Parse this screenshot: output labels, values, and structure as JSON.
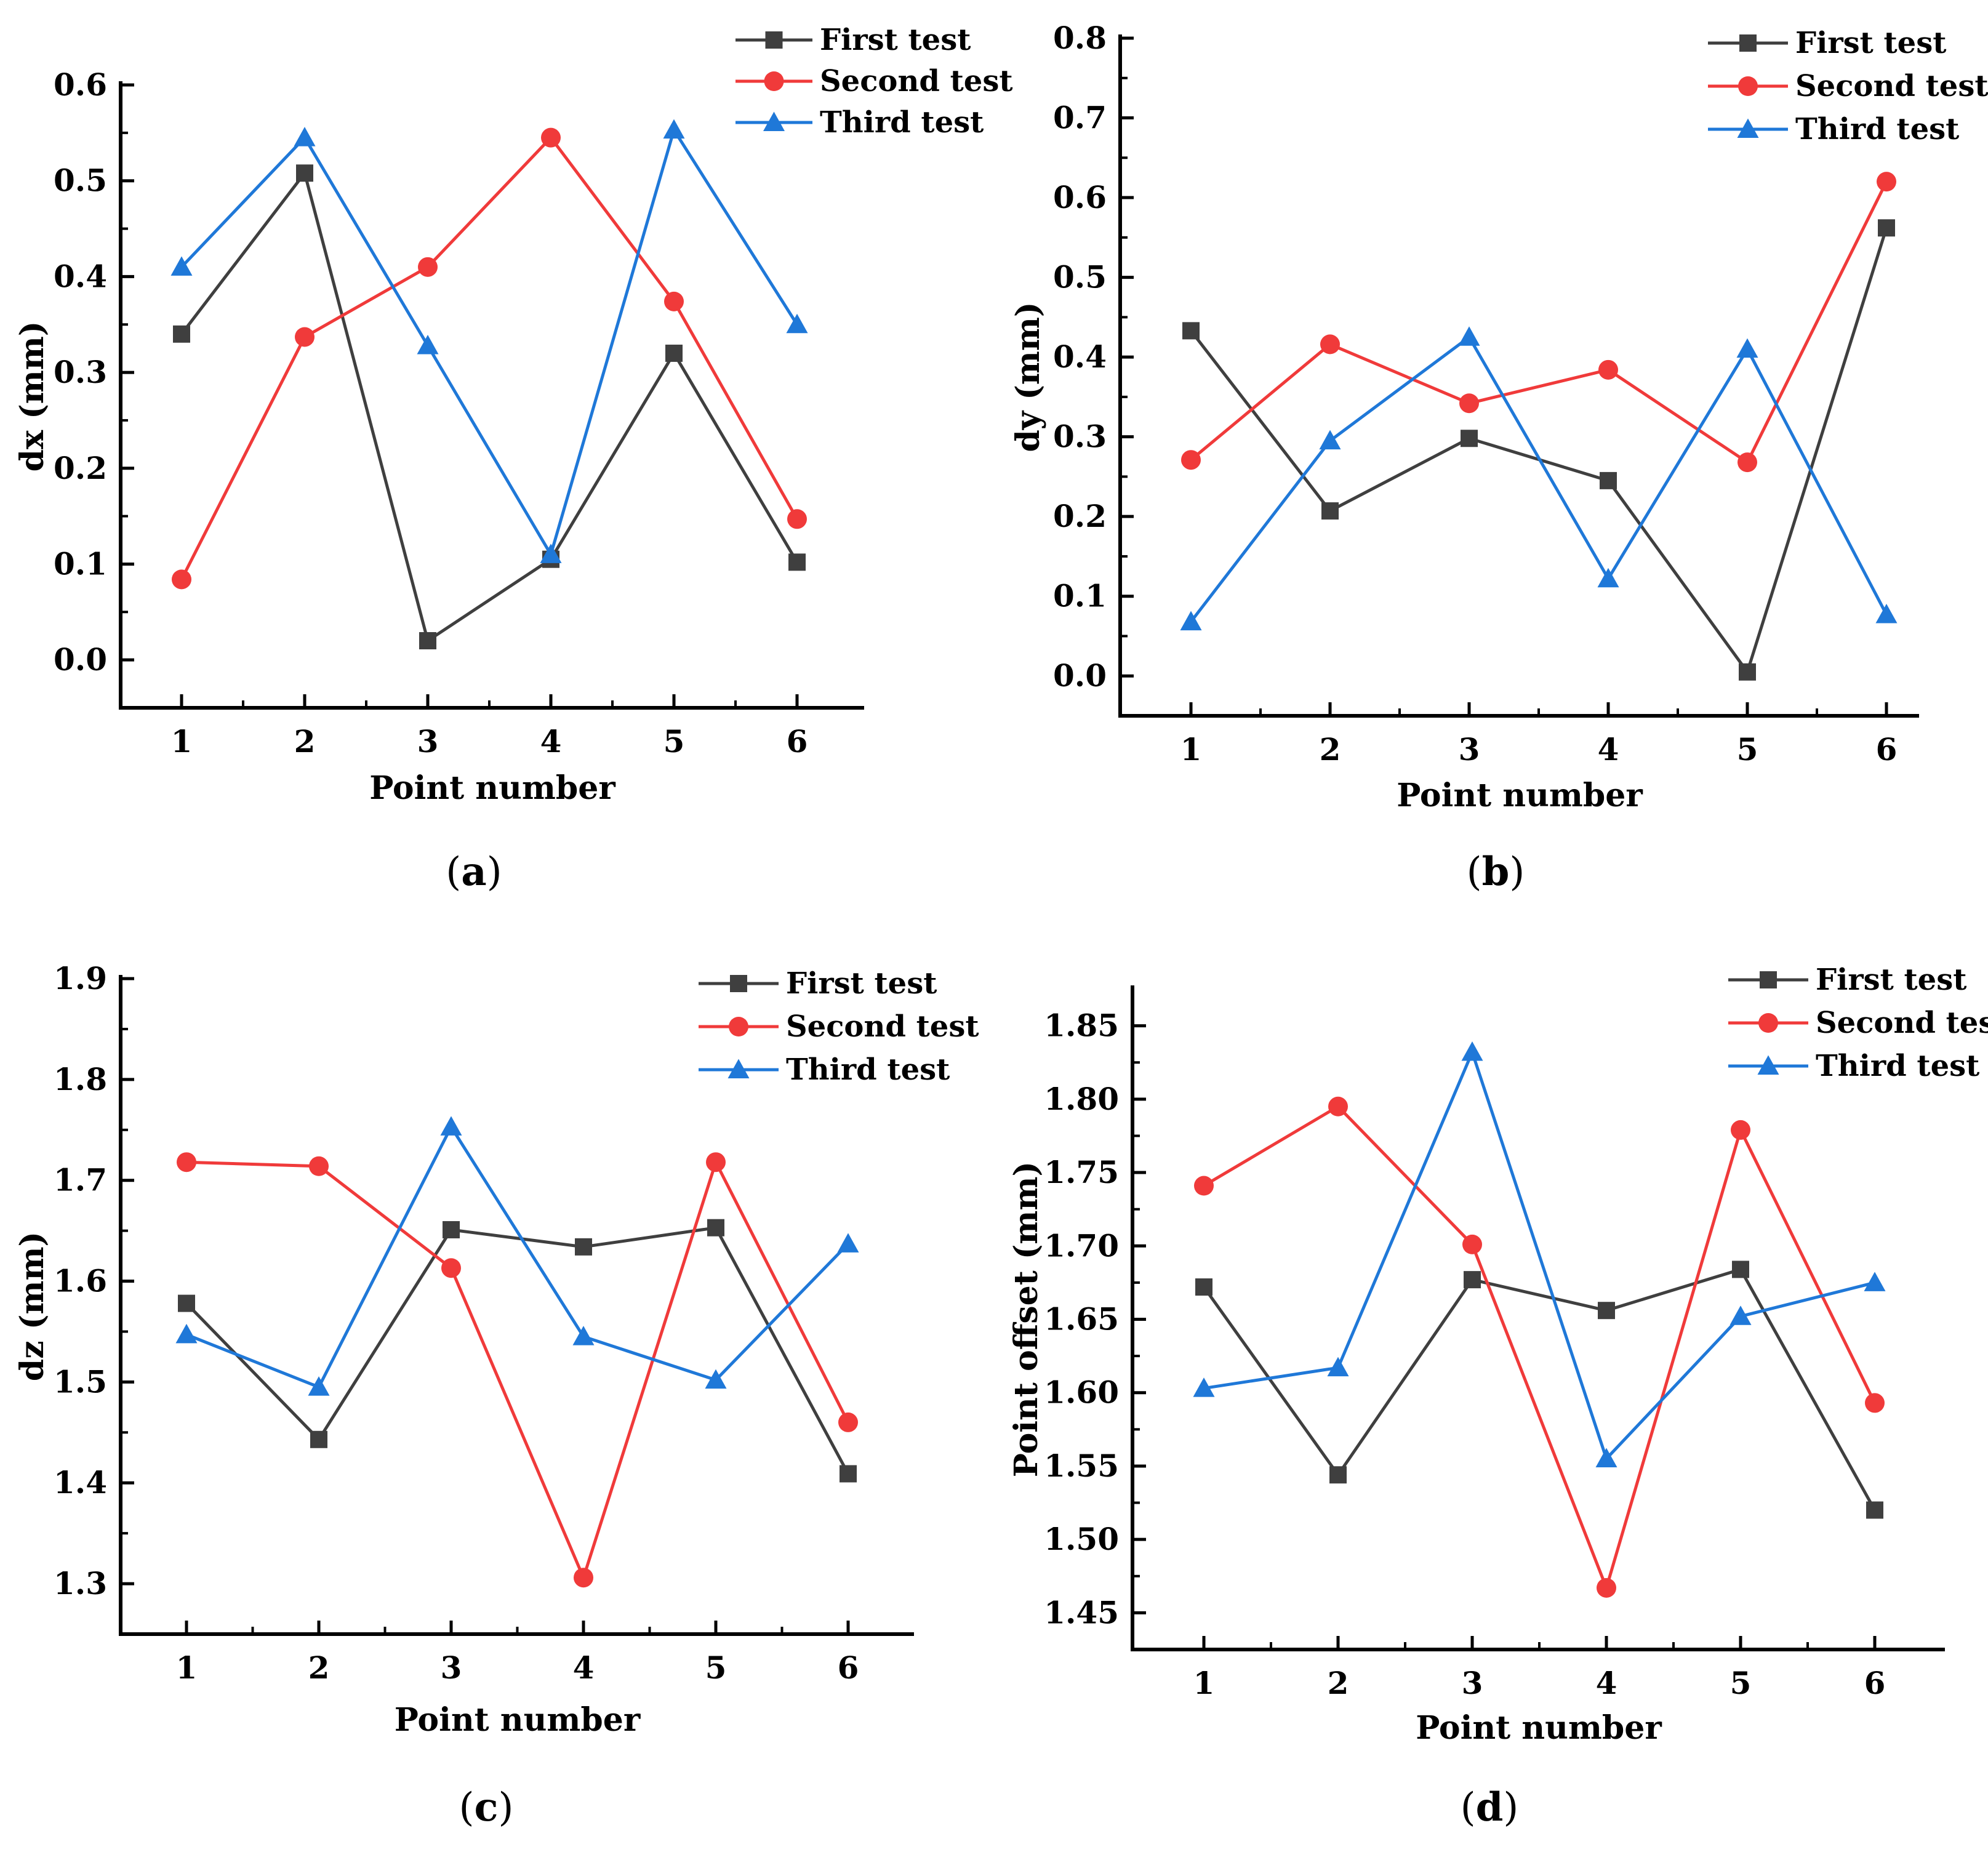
{
  "colors": {
    "first": "#3f3f3f",
    "second": "#f03a3a",
    "third": "#1f78d8"
  },
  "chart_data": [
    {
      "panel": "a",
      "caption_letter": "a",
      "type": "line",
      "xlabel": "Point number",
      "ylabel": "dx (mm)",
      "x": [
        1,
        2,
        3,
        4,
        5,
        6
      ],
      "xticks": [
        "1",
        "2",
        "3",
        "4",
        "5",
        "6"
      ],
      "yticks": [
        "0.0",
        "0.1",
        "0.2",
        "0.3",
        "0.4",
        "0.5",
        "0.6"
      ],
      "ylim": [
        -0.05,
        0.6
      ],
      "legend_position": "top-right",
      "series": [
        {
          "name": "First test",
          "marker": "square",
          "values": [
            0.34,
            0.508,
            0.02,
            0.105,
            0.32,
            0.102
          ]
        },
        {
          "name": "Second test",
          "marker": "circle",
          "values": [
            0.084,
            0.337,
            0.41,
            0.545,
            0.374,
            0.147
          ]
        },
        {
          "name": "Third test",
          "marker": "triangle",
          "values": [
            0.41,
            0.545,
            0.328,
            0.11,
            0.553,
            0.35
          ]
        }
      ]
    },
    {
      "panel": "b",
      "caption_letter": "b",
      "type": "line",
      "xlabel": "Point number",
      "ylabel": "dy (mm)",
      "x": [
        1,
        2,
        3,
        4,
        5,
        6
      ],
      "xticks": [
        "1",
        "2",
        "3",
        "4",
        "5",
        "6"
      ],
      "yticks": [
        "0.0",
        "0.1",
        "0.2",
        "0.3",
        "0.4",
        "0.5",
        "0.6",
        "0.7",
        "0.8"
      ],
      "ylim": [
        -0.05,
        0.8
      ],
      "legend_position": "top-right",
      "series": [
        {
          "name": "First test",
          "marker": "square",
          "values": [
            0.433,
            0.207,
            0.298,
            0.245,
            0.005,
            0.562
          ]
        },
        {
          "name": "Second test",
          "marker": "circle",
          "values": [
            0.271,
            0.416,
            0.342,
            0.384,
            0.268,
            0.62
          ]
        },
        {
          "name": "Third test",
          "marker": "triangle",
          "values": [
            0.068,
            0.295,
            0.425,
            0.122,
            0.41,
            0.077
          ]
        }
      ]
    },
    {
      "panel": "c",
      "caption_letter": "c",
      "type": "line",
      "xlabel": "Point number",
      "ylabel": "dz (mm)",
      "x": [
        1,
        2,
        3,
        4,
        5,
        6
      ],
      "xticks": [
        "1",
        "2",
        "3",
        "4",
        "5",
        "6"
      ],
      "yticks": [
        "1.3",
        "1.4",
        "1.5",
        "1.6",
        "1.7",
        "1.8",
        "1.9"
      ],
      "ylim": [
        1.25,
        1.9
      ],
      "legend_position": "top-right",
      "series": [
        {
          "name": "First test",
          "marker": "square",
          "values": [
            1.578,
            1.443,
            1.651,
            1.634,
            1.653,
            1.409
          ]
        },
        {
          "name": "Second test",
          "marker": "circle",
          "values": [
            1.718,
            1.714,
            1.613,
            1.306,
            1.718,
            1.46
          ]
        },
        {
          "name": "Third test",
          "marker": "triangle",
          "values": [
            1.547,
            1.495,
            1.753,
            1.545,
            1.502,
            1.637
          ]
        }
      ]
    },
    {
      "panel": "d",
      "caption_letter": "d",
      "type": "line",
      "xlabel": "Point number",
      "ylabel": "Point offset (mm)",
      "x": [
        1,
        2,
        3,
        4,
        5,
        6
      ],
      "xticks": [
        "1",
        "2",
        "3",
        "4",
        "5",
        "6"
      ],
      "yticks": [
        "1.45",
        "1.50",
        "1.55",
        "1.60",
        "1.65",
        "1.70",
        "1.75",
        "1.80",
        "1.85"
      ],
      "ylim": [
        1.425,
        1.875
      ],
      "legend_position": "top-right",
      "series": [
        {
          "name": "First test",
          "marker": "square",
          "values": [
            1.672,
            1.544,
            1.677,
            1.656,
            1.684,
            1.52
          ]
        },
        {
          "name": "Second test",
          "marker": "circle",
          "values": [
            1.741,
            1.795,
            1.701,
            1.467,
            1.779,
            1.593
          ]
        },
        {
          "name": "Third test",
          "marker": "triangle",
          "values": [
            1.603,
            1.617,
            1.832,
            1.555,
            1.652,
            1.675
          ]
        }
      ]
    }
  ]
}
